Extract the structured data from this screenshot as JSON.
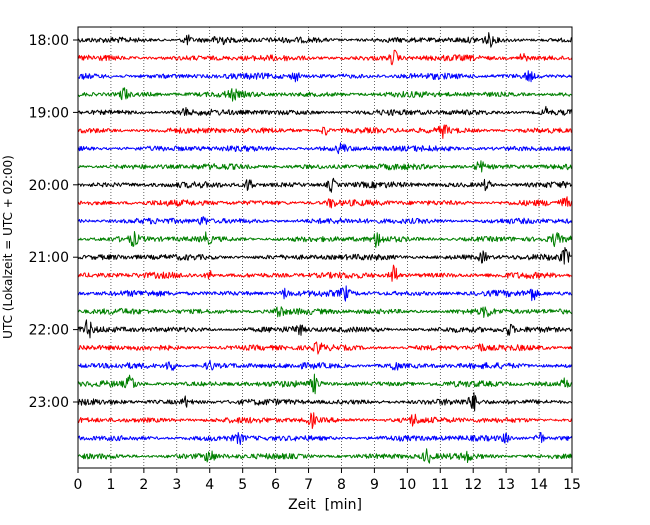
{
  "chart_data": {
    "type": "line",
    "title": "",
    "xlabel": "Zeit  [min]",
    "ylabel": "UTC (Lokalzeit = UTC + 02:00)",
    "xlim": [
      0,
      15
    ],
    "x_ticks": [
      "0",
      "1",
      "2",
      "3",
      "4",
      "5",
      "6",
      "7",
      "8",
      "9",
      "10",
      "11",
      "12",
      "13",
      "14",
      "15"
    ],
    "y_ticks": [
      "18:00",
      "19:00",
      "20:00",
      "21:00",
      "22:00",
      "23:00"
    ],
    "grid": "vertical dotted lines at each minute",
    "start_hour": "18:00",
    "trace_interval_min": 15,
    "trace_count": 24,
    "colors": [
      "#000000",
      "#ff0000",
      "#0000ff",
      "#008000"
    ],
    "events": [
      {
        "trace": 0,
        "t": 3.3,
        "amp": 0.6
      },
      {
        "trace": 0,
        "t": 4.3,
        "amp": 0.8
      },
      {
        "trace": 0,
        "t": 12.5,
        "amp": 0.6
      },
      {
        "trace": 1,
        "t": 9.6,
        "amp": 0.9
      },
      {
        "trace": 1,
        "t": 13.5,
        "amp": 0.6
      },
      {
        "trace": 2,
        "t": 6.6,
        "amp": 0.6
      },
      {
        "trace": 2,
        "t": 13.7,
        "amp": 0.6
      },
      {
        "trace": 3,
        "t": 1.4,
        "amp": 0.8
      },
      {
        "trace": 3,
        "t": 4.7,
        "amp": 0.5
      },
      {
        "trace": 4,
        "t": 3.2,
        "amp": 0.5
      },
      {
        "trace": 4,
        "t": 14.2,
        "amp": 0.5
      },
      {
        "trace": 5,
        "t": 7.5,
        "amp": 0.6
      },
      {
        "trace": 5,
        "t": 11.1,
        "amp": 0.7
      },
      {
        "trace": 6,
        "t": 8.0,
        "amp": 0.6
      },
      {
        "trace": 7,
        "t": 12.2,
        "amp": 0.7
      },
      {
        "trace": 8,
        "t": 5.2,
        "amp": 0.9
      },
      {
        "trace": 8,
        "t": 7.7,
        "amp": 0.8
      },
      {
        "trace": 8,
        "t": 12.4,
        "amp": 0.6
      },
      {
        "trace": 9,
        "t": 7.7,
        "amp": 0.5
      },
      {
        "trace": 9,
        "t": 14.8,
        "amp": 0.6
      },
      {
        "trace": 10,
        "t": 3.8,
        "amp": 0.5
      },
      {
        "trace": 11,
        "t": 1.7,
        "amp": 0.7
      },
      {
        "trace": 11,
        "t": 3.9,
        "amp": 0.6
      },
      {
        "trace": 11,
        "t": 9.1,
        "amp": 0.9
      },
      {
        "trace": 11,
        "t": 14.5,
        "amp": 0.7
      },
      {
        "trace": 12,
        "t": 12.3,
        "amp": 0.6
      },
      {
        "trace": 12,
        "t": 14.8,
        "amp": 0.9
      },
      {
        "trace": 13,
        "t": 9.6,
        "amp": 1.3
      },
      {
        "trace": 13,
        "t": 4.0,
        "amp": 0.5
      },
      {
        "trace": 14,
        "t": 6.3,
        "amp": 0.6
      },
      {
        "trace": 14,
        "t": 8.1,
        "amp": 0.8
      },
      {
        "trace": 14,
        "t": 13.8,
        "amp": 0.8
      },
      {
        "trace": 15,
        "t": 6.1,
        "amp": 0.7
      },
      {
        "trace": 15,
        "t": 12.4,
        "amp": 0.6
      },
      {
        "trace": 16,
        "t": 0.3,
        "amp": 1.0
      },
      {
        "trace": 16,
        "t": 6.7,
        "amp": 0.6
      },
      {
        "trace": 16,
        "t": 13.1,
        "amp": 0.6
      },
      {
        "trace": 17,
        "t": 7.3,
        "amp": 0.6
      },
      {
        "trace": 17,
        "t": 12.2,
        "amp": 0.5
      },
      {
        "trace": 18,
        "t": 2.8,
        "amp": 0.9
      },
      {
        "trace": 18,
        "t": 4.0,
        "amp": 0.6
      },
      {
        "trace": 18,
        "t": 9.6,
        "amp": 0.6
      },
      {
        "trace": 19,
        "t": 1.6,
        "amp": 1.0
      },
      {
        "trace": 19,
        "t": 7.2,
        "amp": 1.0
      },
      {
        "trace": 19,
        "t": 14.8,
        "amp": 0.6
      },
      {
        "trace": 20,
        "t": 3.3,
        "amp": 0.6
      },
      {
        "trace": 20,
        "t": 12.0,
        "amp": 1.0
      },
      {
        "trace": 21,
        "t": 7.1,
        "amp": 0.8
      },
      {
        "trace": 21,
        "t": 10.2,
        "amp": 0.6
      },
      {
        "trace": 22,
        "t": 4.9,
        "amp": 0.5
      },
      {
        "trace": 22,
        "t": 13.0,
        "amp": 0.5
      },
      {
        "trace": 22,
        "t": 14.0,
        "amp": 1.0
      },
      {
        "trace": 23,
        "t": 4.0,
        "amp": 0.8
      },
      {
        "trace": 23,
        "t": 10.6,
        "amp": 0.8
      },
      {
        "trace": 23,
        "t": 11.8,
        "amp": 0.5
      }
    ]
  }
}
